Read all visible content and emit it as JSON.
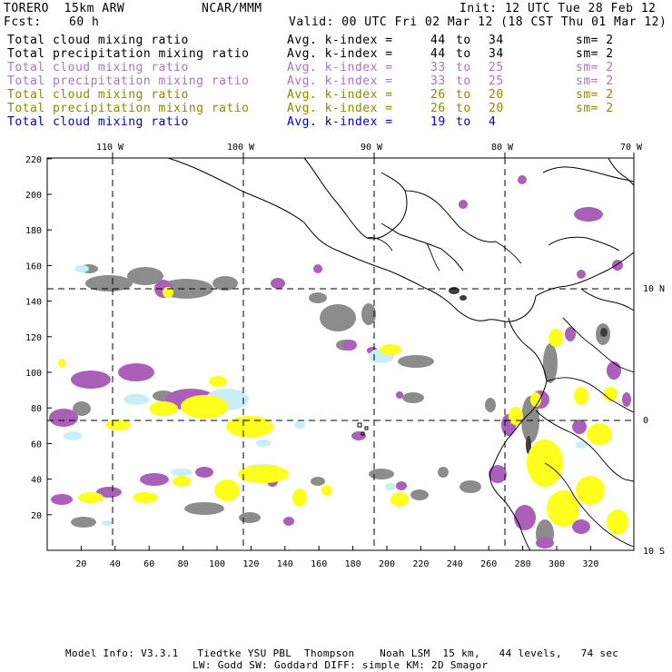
{
  "header": {
    "model": "TORERO  15km ARW",
    "org": "NCAR/MMM",
    "init": "Init: 12 UTC Tue 28 Feb 12",
    "fcst_label": "Fcst:",
    "fcst_value": "60 h",
    "valid": "Valid: 00 UTC Fri 02 Mar 12 (18 CST Thu 01 Mar 12)"
  },
  "legend": [
    {
      "field": "Total cloud mixing ratio",
      "idx": "Avg. k-index =",
      "from": "44",
      "to_word": "to",
      "to": "34",
      "sm": "sm= 2",
      "color": "#000000"
    },
    {
      "field": "Total precipitation mixing ratio",
      "idx": "Avg. k-index =",
      "from": "44",
      "to_word": "to",
      "to": "34",
      "sm": "sm= 2",
      "color": "#000000"
    },
    {
      "field": "Total cloud mixing ratio",
      "idx": "Avg. k-index =",
      "from": "33",
      "to_word": "to",
      "to": "25",
      "sm": "sm= 2",
      "color": "#b070c8"
    },
    {
      "field": "Total precipitation mixing ratio",
      "idx": "Avg. k-index =",
      "from": "33",
      "to_word": "to",
      "to": "25",
      "sm": "sm= 2",
      "color": "#b070c8"
    },
    {
      "field": "Total cloud mixing ratio",
      "idx": "Avg. k-index =",
      "from": "26",
      "to_word": "to",
      "to": "20",
      "sm": "sm= 2",
      "color": "#8a8a00"
    },
    {
      "field": "Total precipitation mixing ratio",
      "idx": "Avg. k-index =",
      "from": "26",
      "to_word": "to",
      "to": "20",
      "sm": "sm= 2",
      "color": "#8a8a00"
    },
    {
      "field": "Total cloud mixing ratio",
      "idx": "Avg. k-index =",
      "from": "19",
      "to_word": "to",
      "to": "4",
      "sm": "",
      "color": "#0000cc"
    }
  ],
  "map": {
    "top_lon_labels": [
      "110 W",
      "100 W",
      "90 W",
      "80 W",
      "70 W"
    ],
    "right_lat_labels": [
      "10 N",
      "0",
      "10 S"
    ],
    "left_ticks": [
      "220",
      "200",
      "180",
      "160",
      "140",
      "120",
      "100",
      "80",
      "60",
      "40",
      "20"
    ],
    "bottom_ticks": [
      "20",
      "40",
      "60",
      "80",
      "100",
      "120",
      "140",
      "160",
      "180",
      "200",
      "220",
      "240",
      "260",
      "280",
      "300",
      "320"
    ],
    "colors": {
      "gray": "#8c8c8c",
      "dark_gray": "#3c3c3c",
      "purple": "#aa5fb8",
      "yellow": "#ffff1e",
      "light_blue": "#c8eef8"
    }
  },
  "footer": {
    "line1": "Model Info: V3.3.1   Tiedtke YSU PBL  Thompson    Noah LSM  15 km,   44 levels,   74 sec",
    "line2": "LW: Godd SW: Goddard DIFF: simple KM: 2D Smagor"
  }
}
